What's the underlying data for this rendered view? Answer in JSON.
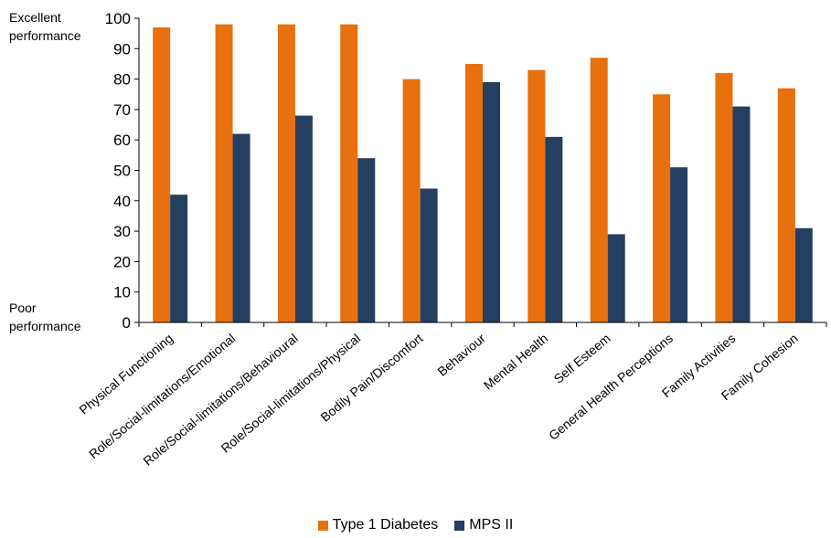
{
  "chart_data": {
    "type": "bar",
    "categories": [
      "Physical Functioning",
      "Role/Social-limitations/Emotional",
      "Role/Social-limitations/Behavioural",
      "Role/Social-limitations/Physical",
      "Bodily Pain/Discomfort",
      "Behaviour",
      "Mental Health",
      "Self Esteem",
      "General Health Perceptions",
      "Family Activities",
      "Family Cohesion"
    ],
    "series": [
      {
        "name": "Type 1 Diabetes",
        "color": "#e8700e",
        "values": [
          97,
          98,
          98,
          98,
          80,
          85,
          83,
          87,
          75,
          82,
          77
        ]
      },
      {
        "name": "MPS II",
        "color": "#243f60",
        "values": [
          42,
          62,
          68,
          54,
          44,
          79,
          61,
          29,
          51,
          71,
          31
        ]
      }
    ],
    "ylim": [
      0,
      100
    ],
    "yticks": [
      0,
      10,
      20,
      30,
      40,
      50,
      60,
      70,
      80,
      90,
      100
    ],
    "ytop_label": "Excellent performance",
    "ybottom_label": "Poor performance",
    "legend_position": "bottom",
    "grid": false
  }
}
